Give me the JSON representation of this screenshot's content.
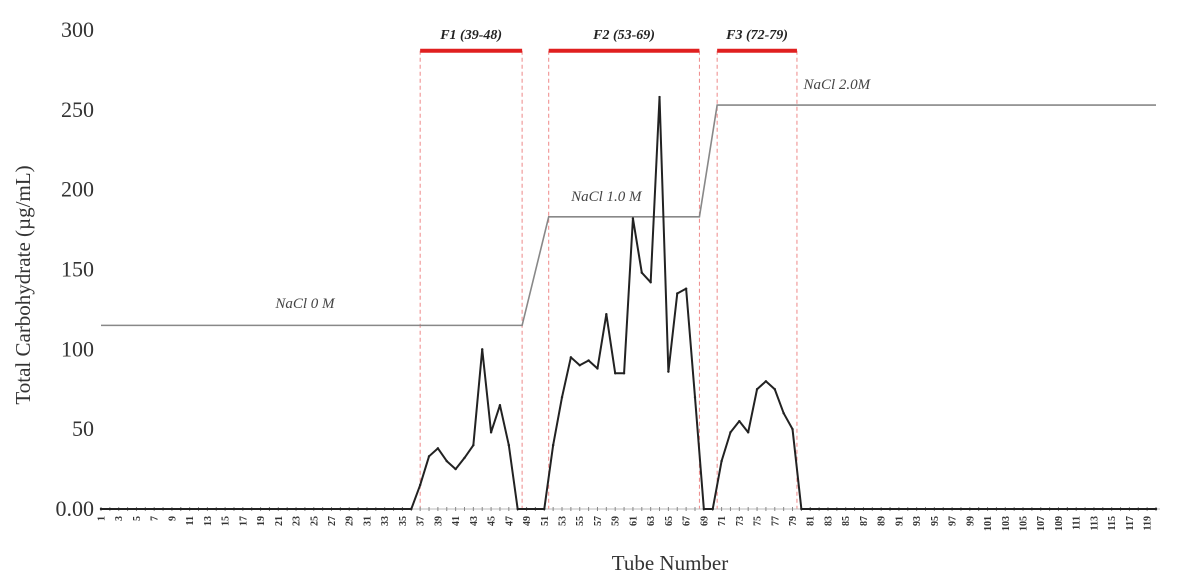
{
  "chart_data": {
    "type": "line",
    "title": "",
    "xlabel": "Tube Number",
    "ylabel": "Total Carbohydrate (µg/mL)",
    "xlim": [
      1,
      120
    ],
    "ylim": [
      0,
      300
    ],
    "y_ticks": [
      {
        "value": 0,
        "label": "0.00"
      },
      {
        "value": 50,
        "label": "50"
      },
      {
        "value": 100,
        "label": "100"
      },
      {
        "value": 150,
        "label": "150"
      },
      {
        "value": 200,
        "label": "200"
      },
      {
        "value": 250,
        "label": "250"
      },
      {
        "value": 300,
        "label": "300"
      }
    ],
    "x_tick_labels": [
      1,
      3,
      5,
      7,
      9,
      11,
      13,
      15,
      17,
      19,
      21,
      23,
      25,
      27,
      29,
      31,
      33,
      35,
      37,
      39,
      41,
      43,
      45,
      47,
      49,
      51,
      53,
      55,
      57,
      59,
      61,
      63,
      65,
      67,
      69,
      71,
      73,
      75,
      77,
      79,
      81,
      83,
      85,
      87,
      89,
      91,
      93,
      95,
      97,
      99,
      101,
      103,
      105,
      107,
      109,
      111,
      113,
      115,
      117,
      119
    ],
    "series": [
      {
        "name": "",
        "color": "#222222",
        "x": [
          1,
          10,
          20,
          30,
          35,
          36,
          37,
          38,
          39,
          40,
          41,
          42,
          43,
          44,
          45,
          46,
          47,
          48,
          49,
          50,
          51,
          52,
          53,
          54,
          55,
          56,
          57,
          58,
          59,
          60,
          61,
          62,
          63,
          64,
          65,
          66,
          67,
          68,
          69,
          70,
          71,
          72,
          73,
          74,
          75,
          76,
          77,
          78,
          79,
          80,
          81,
          90,
          100,
          110,
          120
        ],
        "y": [
          0,
          0,
          0,
          0,
          0,
          0,
          15,
          33,
          38,
          30,
          25,
          32,
          40,
          100,
          48,
          65,
          40,
          0,
          0,
          0,
          0,
          40,
          70,
          95,
          90,
          93,
          88,
          122,
          85,
          85,
          182,
          148,
          142,
          258,
          86,
          135,
          138,
          70,
          0,
          0,
          30,
          48,
          55,
          48,
          75,
          80,
          75,
          60,
          50,
          0,
          0,
          0,
          0,
          0,
          0
        ]
      }
    ],
    "fractions": [
      {
        "label": "F1 (39-48)",
        "start": 37,
        "end": 48.5
      },
      {
        "label": "F2 (53-69)",
        "start": 51.5,
        "end": 68.5
      },
      {
        "label": "F3 (72-79)",
        "start": 70.5,
        "end": 79.5
      }
    ],
    "gradient": {
      "color": "#888888",
      "x": [
        1,
        48.5,
        51.5,
        68.5,
        70.5,
        120
      ],
      "y": [
        115,
        115,
        183,
        183,
        253,
        253
      ]
    },
    "gradient_labels": [
      {
        "text": "NaCl 0 M",
        "x": 24,
        "y": 126
      },
      {
        "text": "NaCl 1.0 M",
        "x": 58,
        "y": 193
      },
      {
        "text": "NaCl 2.0M",
        "x": 84,
        "y": 263
      }
    ],
    "band_color": "#e02020",
    "grid": false,
    "legend": "none"
  }
}
